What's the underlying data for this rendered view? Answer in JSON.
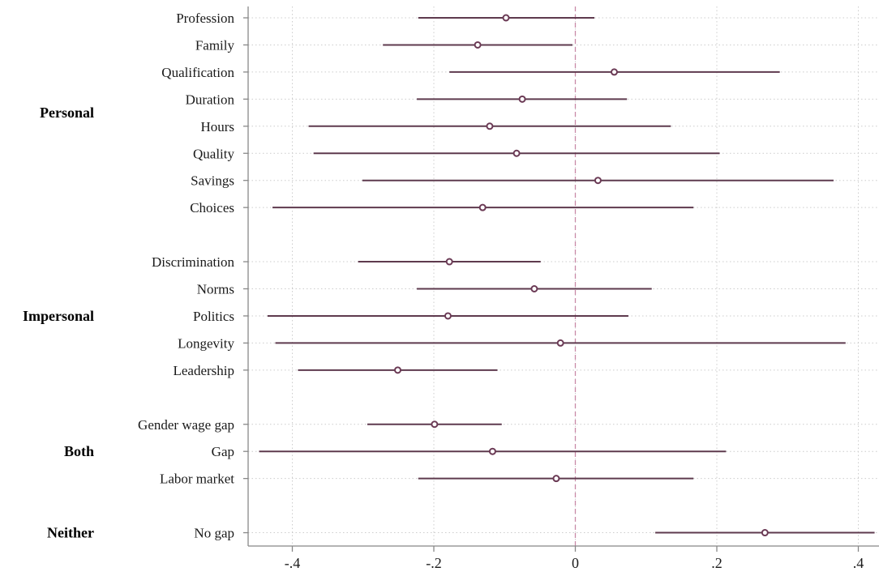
{
  "chart_data": {
    "type": "scatter",
    "title": "",
    "xlabel": "",
    "ylabel": "",
    "xlim": [
      -0.465,
      0.43
    ],
    "xticks": [
      -0.4,
      -0.2,
      0,
      0.2,
      0.4
    ],
    "xtick_labels": [
      "-.4",
      "-.2",
      "0",
      ".2",
      ".4"
    ],
    "reference_line_x": 0,
    "grid": "dotted",
    "groups": [
      {
        "label": "Personal",
        "items": [
          {
            "label": "Profession",
            "estimate": -0.098,
            "ci": [
              -0.222,
              0.027
            ]
          },
          {
            "label": "Family",
            "estimate": -0.138,
            "ci": [
              -0.272,
              -0.004
            ]
          },
          {
            "label": "Qualification",
            "estimate": 0.055,
            "ci": [
              -0.178,
              0.289
            ]
          },
          {
            "label": "Duration",
            "estimate": -0.075,
            "ci": [
              -0.224,
              0.073
            ]
          },
          {
            "label": "Hours",
            "estimate": -0.121,
            "ci": [
              -0.377,
              0.135
            ]
          },
          {
            "label": "Quality",
            "estimate": -0.083,
            "ci": [
              -0.37,
              0.204
            ]
          },
          {
            "label": "Savings",
            "estimate": 0.032,
            "ci": [
              -0.301,
              0.365
            ]
          },
          {
            "label": "Choices",
            "estimate": -0.131,
            "ci": [
              -0.428,
              0.167
            ]
          }
        ]
      },
      {
        "label": "Impersonal",
        "items": [
          {
            "label": "Discrimination",
            "estimate": -0.178,
            "ci": [
              -0.307,
              -0.049
            ]
          },
          {
            "label": "Norms",
            "estimate": -0.058,
            "ci": [
              -0.224,
              0.108
            ]
          },
          {
            "label": "Politics",
            "estimate": -0.18,
            "ci": [
              -0.435,
              0.075
            ]
          },
          {
            "label": "Longevity",
            "estimate": -0.021,
            "ci": [
              -0.424,
              0.382
            ]
          },
          {
            "label": "Leadership",
            "estimate": -0.251,
            "ci": [
              -0.392,
              -0.11
            ]
          }
        ]
      },
      {
        "label": "Both",
        "items": [
          {
            "label": "Gender wage gap",
            "estimate": -0.199,
            "ci": [
              -0.294,
              -0.104
            ]
          },
          {
            "label": "Gap",
            "estimate": -0.117,
            "ci": [
              -0.447,
              0.213
            ]
          },
          {
            "label": "Labor market",
            "estimate": -0.027,
            "ci": [
              -0.222,
              0.167
            ]
          }
        ]
      },
      {
        "label": "Neither",
        "items": [
          {
            "label": "No gap",
            "estimate": 0.268,
            "ci": [
              0.113,
              0.423
            ]
          }
        ]
      }
    ],
    "colors": {
      "marker": "#6b3a55",
      "ci_line": "#5e3a4e",
      "reference_line": "#c98aa8",
      "grid": "#cccccc",
      "axis": "#888888"
    }
  }
}
